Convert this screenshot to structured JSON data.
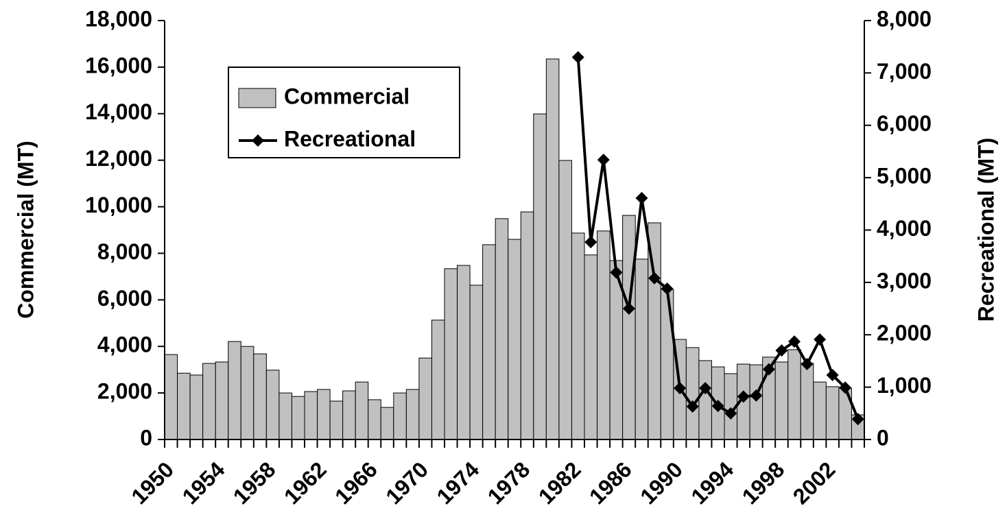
{
  "chart_data": {
    "type": "bar",
    "categories": [
      "1950",
      null,
      null,
      null,
      "1954",
      null,
      null,
      null,
      "1958",
      null,
      null,
      null,
      "1962",
      null,
      null,
      null,
      "1966",
      null,
      null,
      null,
      "1970",
      null,
      null,
      null,
      "1974",
      null,
      null,
      null,
      "1978",
      null,
      null,
      null,
      "1982",
      null,
      null,
      null,
      "1986",
      null,
      null,
      null,
      "1990",
      null,
      null,
      null,
      "1994",
      null,
      null,
      null,
      "1998",
      null,
      null,
      null,
      "2002",
      null,
      null
    ],
    "series": [
      {
        "name": "Commercial",
        "type": "bar",
        "color": "#c0c0c0",
        "values": [
          3650,
          2850,
          2770,
          3270,
          3330,
          4210,
          4000,
          3680,
          2980,
          2000,
          1850,
          2060,
          2150,
          1650,
          2090,
          2470,
          1710,
          1380,
          2000,
          2150,
          3500,
          5130,
          7340,
          7480,
          6630,
          8370,
          9490,
          8600,
          9780,
          13990,
          16350,
          11990,
          8870,
          7930,
          8960,
          7690,
          9630,
          7750,
          9310,
          6450,
          4300,
          3950,
          3390,
          3120,
          2830,
          3240,
          3210,
          3540,
          3330,
          3860,
          3270,
          2470,
          2270,
          2210,
          1060
        ]
      },
      {
        "name": "Recreational",
        "type": "line",
        "axis": "y2",
        "color": "#000000",
        "values": [
          null,
          null,
          null,
          null,
          null,
          null,
          null,
          null,
          null,
          null,
          null,
          null,
          null,
          null,
          null,
          null,
          null,
          null,
          null,
          null,
          null,
          null,
          null,
          null,
          null,
          null,
          null,
          null,
          null,
          null,
          null,
          null,
          7300,
          3770,
          5340,
          3190,
          2500,
          4610,
          3080,
          2880,
          980,
          630,
          980,
          640,
          500,
          820,
          840,
          1340,
          1700,
          1870,
          1440,
          1910,
          1230,
          990,
          390
        ]
      }
    ],
    "ylabel": "Commercial (MT)",
    "y2label": "Recreational (MT)",
    "ylim": [
      0,
      18000
    ],
    "yticks": [
      0,
      {
        "value": 2000,
        "label": "2,000"
      },
      {
        "value": 4000,
        "label": "4,000"
      },
      {
        "value": 6000,
        "label": "6,000"
      },
      {
        "value": 8000,
        "label": "8,000"
      },
      {
        "value": 10000,
        "label": "10,000"
      },
      {
        "value": 12000,
        "label": "12,000"
      },
      {
        "value": 14000,
        "label": "14,000"
      },
      {
        "value": 16000,
        "label": "16,000"
      },
      {
        "value": 18000,
        "label": "18,000"
      }
    ],
    "y2lim": [
      0,
      8000
    ],
    "y2ticks": [
      0,
      {
        "value": 1000,
        "label": "1,000"
      },
      {
        "value": 2000,
        "label": "2,000"
      },
      {
        "value": 3000,
        "label": "3,000"
      },
      {
        "value": 4000,
        "label": "4,000"
      },
      {
        "value": 5000,
        "label": "5,000"
      },
      {
        "value": 6000,
        "label": "6,000"
      },
      {
        "value": 7000,
        "label": "7,000"
      },
      {
        "value": 8000,
        "label": "8,000"
      }
    ],
    "grid": false,
    "legend": "upper left"
  }
}
